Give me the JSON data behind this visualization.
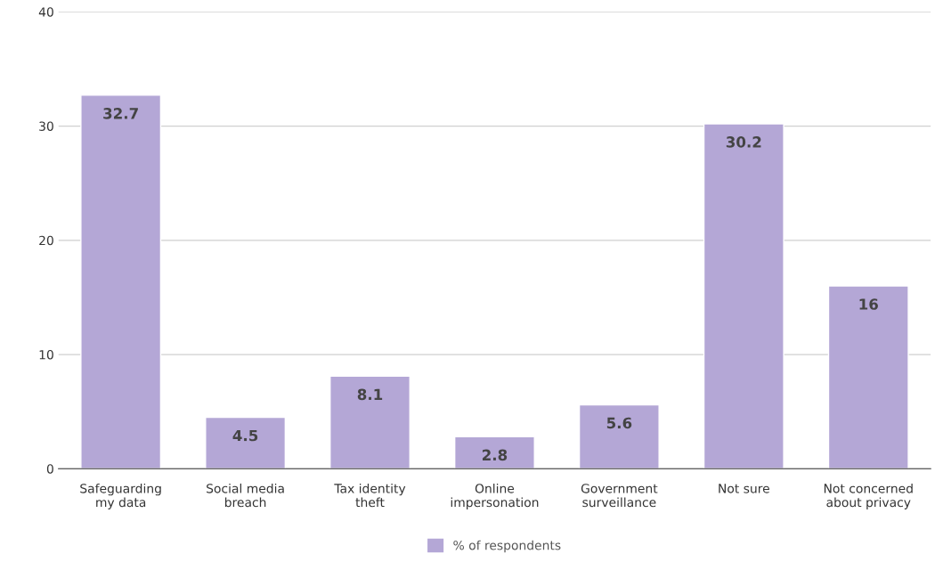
{
  "chart_data": {
    "type": "bar",
    "categories": [
      "Safeguarding\nmy data",
      "Social media\nbreach",
      "Tax identity\ntheft",
      "Online\nimpersonation",
      "Government\nsurveillance",
      "Not sure",
      "Not concerned\nabout privacy"
    ],
    "series": [
      {
        "name": "% of respondents",
        "color": "#b4a7d6",
        "values": [
          32.7,
          4.5,
          8.1,
          2.8,
          5.6,
          30.2,
          16
        ]
      }
    ],
    "ylim": [
      0,
      40
    ],
    "yticks": [
      0,
      10,
      20,
      30,
      40
    ],
    "grid": "y",
    "legend": "bottom",
    "data_labels": true
  }
}
